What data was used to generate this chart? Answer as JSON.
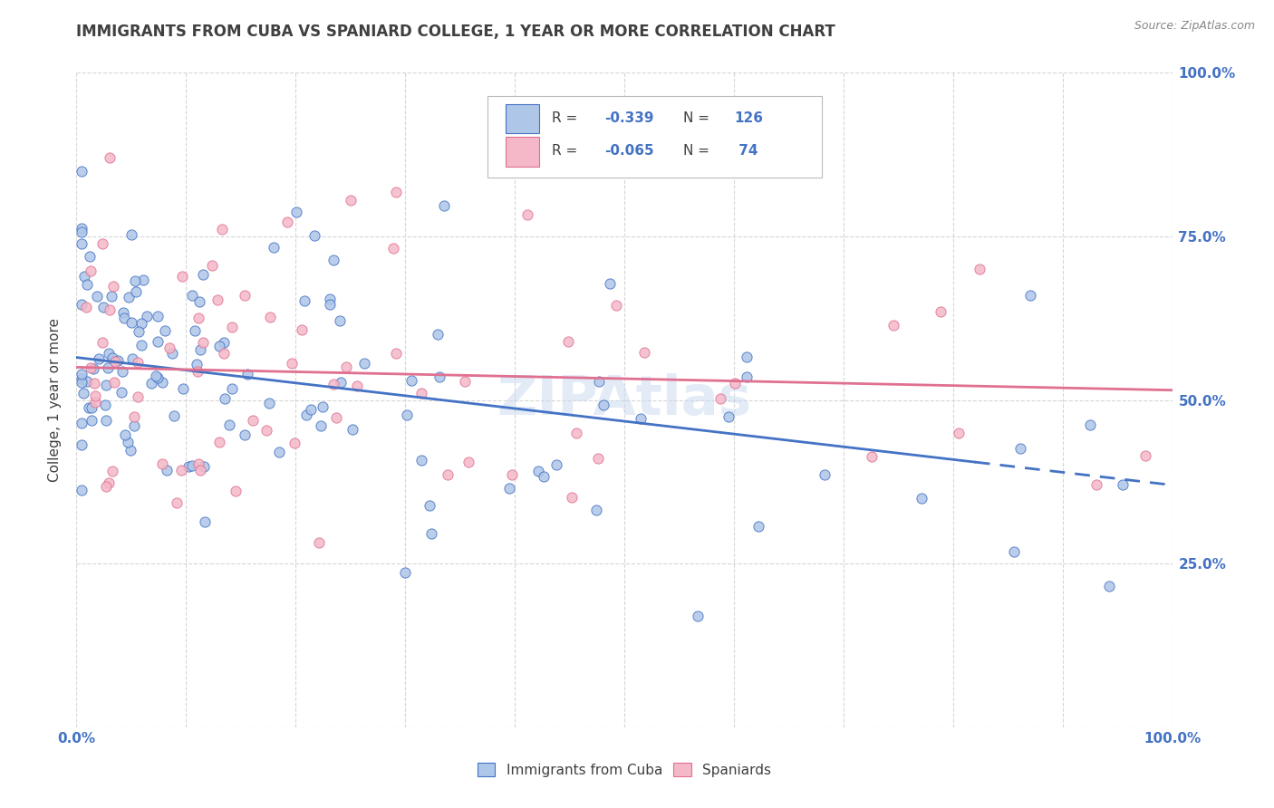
{
  "title": "IMMIGRANTS FROM CUBA VS SPANIARD COLLEGE, 1 YEAR OR MORE CORRELATION CHART",
  "source_text": "Source: ZipAtlas.com",
  "ylabel": "College, 1 year or more",
  "xlim": [
    0,
    100
  ],
  "ylim": [
    0,
    100
  ],
  "color_blue_fill": "#aec6e8",
  "color_pink_fill": "#f4b8c8",
  "color_blue_line": "#4472c4",
  "color_pink_line": "#e07090",
  "color_blue_dark": "#4472c4",
  "color_text_blue": "#4472c4",
  "color_text_dark": "#404040",
  "watermark": "ZIPAtlas",
  "background_color": "#ffffff",
  "grid_color": "#cccccc",
  "blue_intercept": 56.5,
  "blue_slope": -0.195,
  "pink_intercept": 55.0,
  "pink_slope": -0.035,
  "blue_solid_end": 82,
  "seed": 12
}
